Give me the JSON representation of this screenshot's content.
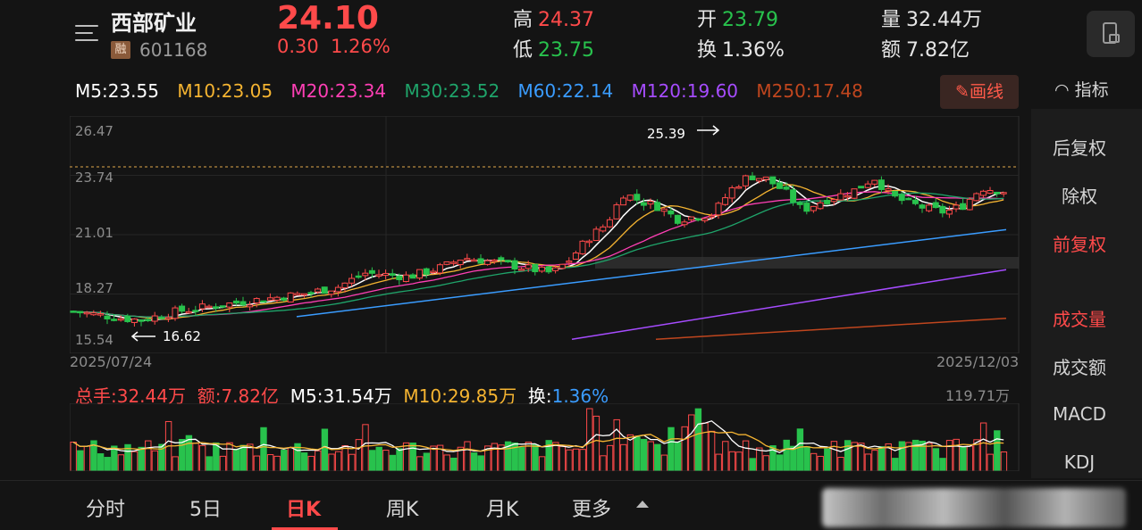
{
  "stock": {
    "name": "西部矿业",
    "rong": "融",
    "code": "601168",
    "price": "24.10",
    "change": "0.30",
    "change_pct": "1.26%"
  },
  "quote": {
    "high_label": "高",
    "high": "24.37",
    "low_label": "低",
    "low": "23.75",
    "open_label": "开",
    "open": "23.79",
    "turnover_label": "换",
    "turnover": "1.36%",
    "volume_label": "量",
    "volume": "32.44万",
    "amount_label": "额",
    "amount": "7.82亿"
  },
  "ma": {
    "m5": "M5:23.55",
    "m10": "M10:23.05",
    "m20": "M20:23.34",
    "m30": "M30:23.52",
    "m60": "M60:22.14",
    "m120": "M120:19.60",
    "m250": "M250:17.48"
  },
  "colors": {
    "up": "#ff4a4a",
    "down": "#28c24d",
    "m5": "#ffffff",
    "m10": "#f5b431",
    "m20": "#ff3fb5",
    "m30": "#1fa46a",
    "m60": "#3a9cff",
    "m120": "#a64cff",
    "m250": "#c0461e"
  },
  "draw_button": "画线",
  "indicator_label": "指标",
  "chart": {
    "y_ticks": [
      "26.47",
      "23.74",
      "21.01",
      "18.27",
      "15.54"
    ],
    "high_mark": "25.39",
    "low_mark": "16.62",
    "date_start": "2025/07/24",
    "date_end": "2025/12/03"
  },
  "volume": {
    "total": "总手:32.44万",
    "amount": "额:7.82亿",
    "m5": "M5:31.54万",
    "m10": "M10:29.85万",
    "turnover_label": "换:",
    "turnover": "1.36%",
    "max": "119.71万"
  },
  "side_menu": [
    "后复权",
    "除权",
    "前复权",
    "成交量",
    "成交额",
    "MACD",
    "KDJ"
  ],
  "tabs": [
    "分时",
    "5日",
    "日K",
    "周K",
    "月K",
    "更多"
  ]
}
